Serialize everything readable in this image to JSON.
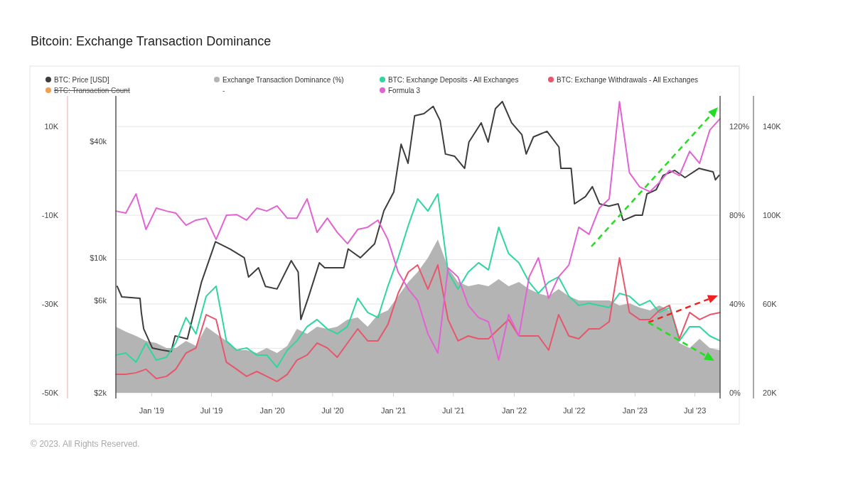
{
  "chart_data": {
    "type": "line",
    "title": "Bitcoin: Exchange Transaction Dominance",
    "x": [
      "2018-09-15",
      "2018-10-15",
      "2018-11-15",
      "2018-12-15",
      "2019-01-15",
      "2019-02-15",
      "2019-03-15",
      "2019-04-15",
      "2019-05-15",
      "2019-06-15",
      "2019-07-15",
      "2019-08-15",
      "2019-09-15",
      "2019-10-15",
      "2019-11-15",
      "2019-12-15",
      "2020-01-15",
      "2020-02-15",
      "2020-03-15",
      "2020-04-15",
      "2020-05-15",
      "2020-06-15",
      "2020-07-15",
      "2020-08-15",
      "2020-09-15",
      "2020-10-15",
      "2020-11-15",
      "2020-12-15",
      "2021-01-15",
      "2021-02-15",
      "2021-03-15",
      "2021-04-15",
      "2021-05-15",
      "2021-06-15",
      "2021-07-15",
      "2021-08-15",
      "2021-09-15",
      "2021-10-15",
      "2021-11-15",
      "2021-12-15",
      "2022-01-15",
      "2022-02-15",
      "2022-03-15",
      "2022-04-15",
      "2022-05-15",
      "2022-06-15",
      "2022-07-15",
      "2022-08-15",
      "2022-09-15",
      "2022-10-15",
      "2022-11-15",
      "2022-12-15",
      "2023-01-15",
      "2023-02-15",
      "2023-03-15",
      "2023-04-15",
      "2023-05-15",
      "2023-06-15",
      "2023-07-15",
      "2023-08-15",
      "2023-09-15"
    ],
    "series": [
      {
        "name": "BTC: Price [USD]",
        "axis": "y",
        "color": "#3d3d3d",
        "x": [
          "2018-09-19",
          "2018-10-03",
          "2018-11-27",
          "2018-12-01",
          "2018-12-08",
          "2019-01-03",
          "2019-01-31",
          "2019-03-01",
          "2019-03-13",
          "2019-04-19",
          "2019-06-01",
          "2019-07-13",
          "2019-08-26",
          "2019-10-08",
          "2019-10-21",
          "2019-11-20",
          "2019-12-11",
          "2020-01-15",
          "2020-02-27",
          "2020-03-19",
          "2020-03-27",
          "2020-04-18",
          "2020-05-22",
          "2020-06-07",
          "2020-08-04",
          "2020-08-17",
          "2020-09-23",
          "2020-11-05",
          "2020-12-03",
          "2021-01-02",
          "2021-01-24",
          "2021-02-14",
          "2021-03-06",
          "2021-04-03",
          "2021-05-01",
          "2021-05-22",
          "2021-06-07",
          "2021-07-05",
          "2021-08-04",
          "2021-08-17",
          "2021-09-23",
          "2021-10-14",
          "2021-11-05",
          "2021-11-26",
          "2021-12-24",
          "2022-01-24",
          "2022-02-06",
          "2022-02-28",
          "2022-04-10",
          "2022-05-16",
          "2022-05-22",
          "2022-06-22",
          "2022-07-02",
          "2022-08-04",
          "2022-08-25",
          "2022-09-16",
          "2022-10-14",
          "2022-11-11",
          "2022-11-26",
          "2023-01-02",
          "2023-01-23",
          "2023-02-06",
          "2023-03-06",
          "2023-03-27",
          "2023-05-01",
          "2023-06-01",
          "2023-07-13",
          "2023-08-25",
          "2023-09-01",
          "2023-09-12"
        ],
        "values": [
          7110,
          6270,
          6170,
          5200,
          4290,
          3410,
          3330,
          3270,
          3940,
          3800,
          7500,
          12100,
          11100,
          10000,
          7950,
          8870,
          7110,
          6890,
          9660,
          8430,
          4790,
          6170,
          9420,
          8870,
          8870,
          11100,
          10000,
          11800,
          17500,
          21900,
          38700,
          30800,
          54300,
          55700,
          60700,
          51200,
          34400,
          33500,
          29000,
          39700,
          49900,
          39700,
          59100,
          64300,
          49900,
          43300,
          34400,
          42200,
          45100,
          37400,
          29000,
          29000,
          19000,
          20700,
          23300,
          19000,
          18500,
          19000,
          15600,
          16600,
          16600,
          21400,
          22500,
          26700,
          28300,
          26000,
          29000,
          27800,
          25300,
          26700
        ]
      },
      {
        "name": "Exchange Transaction Dominance (%)",
        "type": "area",
        "axis": "y2",
        "color": "#b4b4b4",
        "values": [
          29.8,
          27.5,
          25.6,
          23.4,
          22.4,
          20.2,
          20.2,
          23.4,
          21.1,
          29.8,
          26.6,
          23.4,
          19.2,
          19.2,
          17.9,
          20.2,
          17.9,
          21.1,
          28.8,
          26.6,
          29.8,
          28.8,
          29.8,
          33.0,
          33.9,
          29.8,
          35.2,
          37.1,
          43.5,
          49.9,
          54.4,
          60.8,
          69.1,
          56.3,
          49.9,
          48.0,
          49.0,
          48.0,
          51.2,
          48.0,
          49.9,
          46.7,
          44.8,
          43.5,
          46.7,
          43.5,
          41.6,
          41.6,
          41.6,
          41.6,
          39.4,
          40.3,
          38.4,
          37.1,
          39.4,
          37.1,
          22.4,
          20.2,
          24.3,
          20.2,
          19.2
        ]
      },
      {
        "name": "BTC: Exchange Deposits - All Exchanges",
        "axis": "y3",
        "color": "#2fd69e",
        "values": [
          37000,
          37900,
          33800,
          42400,
          34700,
          36000,
          42400,
          53900,
          46600,
          63500,
          68000,
          43400,
          39200,
          40200,
          37000,
          37000,
          31500,
          39200,
          43400,
          49800,
          53000,
          48800,
          46600,
          49800,
          62600,
          56200,
          53900,
          68000,
          80800,
          95500,
          107400,
          101900,
          109600,
          74400,
          66700,
          74400,
          78600,
          75400,
          94600,
          82700,
          78600,
          69900,
          64800,
          69900,
          72200,
          63500,
          59400,
          60300,
          59400,
          58400,
          64800,
          63500,
          59400,
          61600,
          56200,
          58400,
          43400,
          49800,
          49800,
          45600,
          43400
        ]
      },
      {
        "name": "BTC: Exchange Withdrawals - All Exchanges",
        "axis": "y3",
        "color": "#e8566b",
        "values": [
          28300,
          28300,
          29000,
          30600,
          26400,
          27400,
          30600,
          37900,
          40200,
          55200,
          53000,
          33800,
          30600,
          27400,
          29600,
          27400,
          25100,
          28300,
          34700,
          37000,
          42400,
          40200,
          36000,
          42400,
          48800,
          43400,
          43400,
          50700,
          64800,
          74400,
          77600,
          66700,
          77600,
          53000,
          43400,
          45600,
          44300,
          44300,
          48800,
          53000,
          45600,
          45600,
          45600,
          39200,
          55200,
          45600,
          44300,
          48800,
          48800,
          52000,
          80800,
          56200,
          53000,
          53000,
          57100,
          59400,
          44300,
          56200,
          53000,
          55200,
          56200
        ]
      },
      {
        "name": "Formula 3",
        "axis": "y2",
        "color": "#e262d2",
        "values": [
          81.9,
          81.0,
          89.6,
          73.6,
          83.2,
          81.9,
          81.0,
          75.5,
          77.8,
          78.7,
          69.1,
          80.0,
          80.3,
          77.8,
          83.2,
          81.9,
          84.2,
          78.7,
          78.7,
          87.4,
          72.3,
          78.7,
          72.3,
          67.2,
          73.6,
          74.6,
          77.8,
          69.1,
          54.4,
          46.7,
          41.6,
          26.6,
          17.9,
          56.3,
          52.2,
          39.4,
          33.9,
          32.0,
          14.7,
          35.2,
          25.6,
          52.2,
          60.8,
          42.6,
          52.2,
          57.6,
          74.6,
          71.4,
          83.2,
          87.4,
          131.2,
          99.2,
          92.8,
          90.6,
          94.7,
          100.2,
          97.9,
          108.8,
          103.4,
          118.4,
          123.5
        ]
      }
    ],
    "xlim": [
      "2018-09-15",
      "2023-09-15"
    ],
    "xticks": [
      {
        "value": "2019-01-01",
        "label": "Jan '19"
      },
      {
        "value": "2019-07-01",
        "label": "Jul '19"
      },
      {
        "value": "2020-01-01",
        "label": "Jan '20"
      },
      {
        "value": "2020-07-01",
        "label": "Jul '20"
      },
      {
        "value": "2021-01-01",
        "label": "Jan '21"
      },
      {
        "value": "2021-07-01",
        "label": "Jul '21"
      },
      {
        "value": "2022-01-01",
        "label": "Jan '22"
      },
      {
        "value": "2022-07-01",
        "label": "Jul '22"
      },
      {
        "value": "2023-01-01",
        "label": "Jan '23"
      },
      {
        "value": "2023-07-01",
        "label": "Jul '23"
      }
    ],
    "ylim": [
      2000,
      68800
    ],
    "yticks": [
      {
        "value": 2000,
        "label": "$2k"
      },
      {
        "value": 6000,
        "label": "$6k"
      },
      {
        "value": 10000,
        "label": "$10k"
      },
      {
        "value": 40000,
        "label": "$40k"
      }
    ],
    "log": "y",
    "y2lim": [
      0,
      133.8
    ],
    "y2ticks": [
      {
        "value": 0,
        "label": "0%"
      },
      {
        "value": 20,
        "label": null
      },
      {
        "value": 40,
        "label": "40%"
      },
      {
        "value": 60,
        "label": null
      },
      {
        "value": 80,
        "label": "80%"
      },
      {
        "value": 100,
        "label": null
      },
      {
        "value": 120,
        "label": "120%"
      }
    ],
    "y3lim": [
      20000,
      153800
    ],
    "y3ticks": [
      {
        "value": 20000,
        "label": "20K"
      },
      {
        "value": 60000,
        "label": "60K"
      },
      {
        "value": 100000,
        "label": "100K"
      },
      {
        "value": 140000,
        "label": "140K"
      }
    ],
    "grid": "y",
    "legend": "top",
    "annotations": [
      "BTC: Transaction Count",
      "-",
      "© 2023. All Rights Reserved.",
      "10K",
      "-10K",
      "-30K",
      "-50K"
    ]
  }
}
